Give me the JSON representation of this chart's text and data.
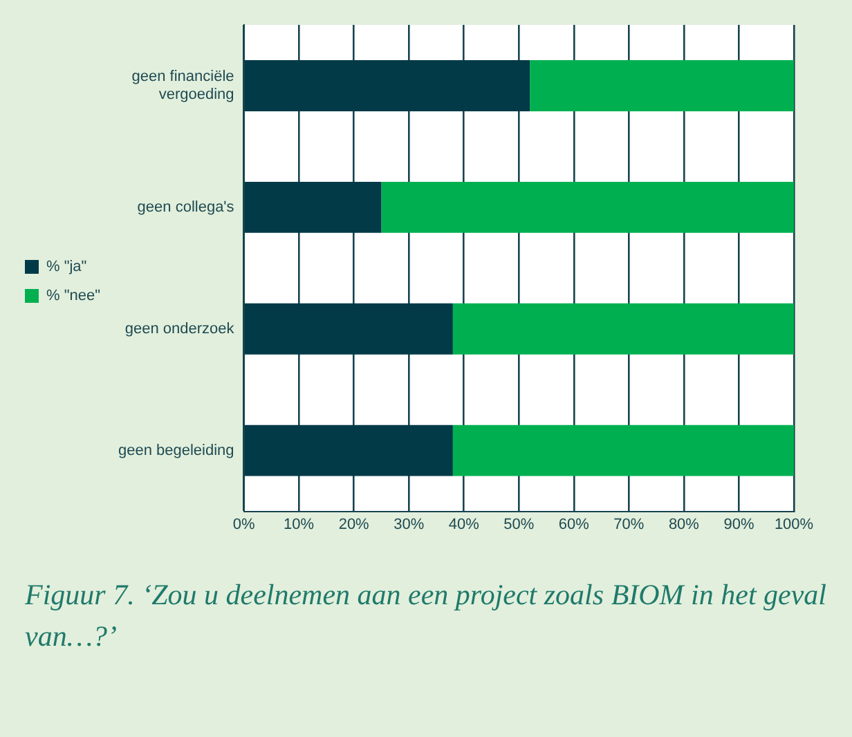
{
  "chart_data": {
    "type": "bar",
    "orientation": "horizontal",
    "stacked": true,
    "categories": [
      "geen financiële vergoeding",
      "geen collega's",
      "geen onderzoek",
      "geen begeleiding"
    ],
    "series": [
      {
        "name": "% \"ja\"",
        "color": "#023a48",
        "values": [
          52,
          25,
          38,
          38
        ]
      },
      {
        "name": "% \"nee\"",
        "color": "#00b050",
        "values": [
          48,
          75,
          62,
          62
        ]
      }
    ],
    "xlim": [
      0,
      100
    ],
    "xticks": [
      {
        "value": 0,
        "label": "0%"
      },
      {
        "value": 10,
        "label": "10%"
      },
      {
        "value": 20,
        "label": "20%"
      },
      {
        "value": 30,
        "label": "30%"
      },
      {
        "value": 40,
        "label": "40%"
      },
      {
        "value": 50,
        "label": "50%"
      },
      {
        "value": 60,
        "label": "60%"
      },
      {
        "value": 70,
        "label": "70%"
      },
      {
        "value": 80,
        "label": "80%"
      },
      {
        "value": 90,
        "label": "90%"
      },
      {
        "value": 100,
        "label": "100%"
      }
    ],
    "grid": "x",
    "legend": "left",
    "annotations": [
      "Figuur 7. ‘Zou u deelnemen aan een project zoals BIOM in het geval van…?’"
    ]
  }
}
